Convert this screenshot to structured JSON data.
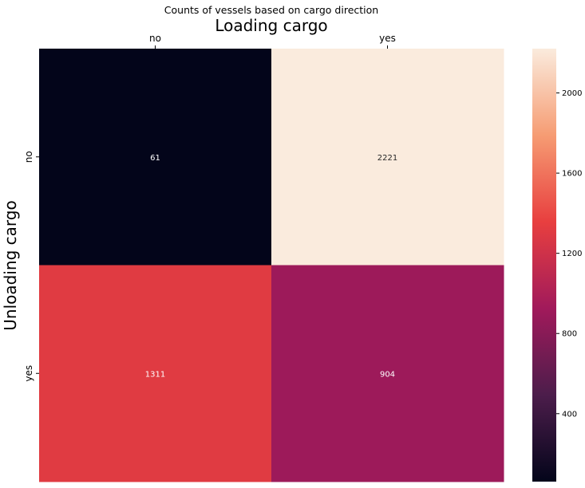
{
  "chart_data": {
    "type": "heatmap",
    "title": "Counts of vessels based on cargo direction",
    "xlabel": "Loading cargo",
    "ylabel": "Unloading cargo",
    "x_categories": [
      "no",
      "yes"
    ],
    "y_categories": [
      "no",
      "yes"
    ],
    "values": [
      [
        61,
        2221
      ],
      [
        1311,
        904
      ]
    ],
    "colorbar": {
      "min": 61,
      "max": 2221,
      "ticks": [
        400,
        800,
        1200,
        1600,
        2000
      ],
      "colormap": "rocket",
      "stops": [
        "#03051a",
        "#4c1d4b",
        "#a11a5b",
        "#e83f3f",
        "#f69c73",
        "#faebdd"
      ]
    },
    "grid": false,
    "legend": "colorbar-right"
  }
}
